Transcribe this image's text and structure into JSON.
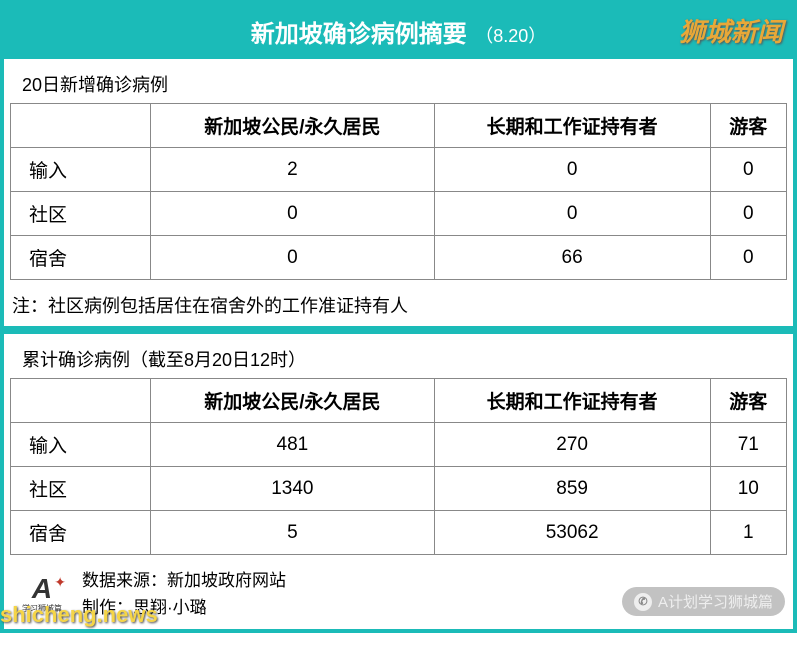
{
  "header": {
    "title": "新加坡确诊病例摘要",
    "date": "（8.20）"
  },
  "watermarks": {
    "top_right": "狮城新闻",
    "bottom_left": "shicheng.news",
    "bottom_right": "A计划学习狮城篇"
  },
  "table1": {
    "title": "20日新增确诊病例",
    "headers": [
      "",
      "新加坡公民/永久居民",
      "长期和工作证持有者",
      "游客"
    ],
    "rows": [
      {
        "label": "输入",
        "values": [
          "2",
          "0",
          "0"
        ]
      },
      {
        "label": "社区",
        "values": [
          "0",
          "0",
          "0"
        ]
      },
      {
        "label": "宿舍",
        "values": [
          "0",
          "66",
          "0"
        ]
      }
    ],
    "note": "注：社区病例包括居住在宿舍外的工作准证持有人"
  },
  "table2": {
    "title": "累计确诊病例（截至8月20日12时）",
    "headers": [
      "",
      "新加坡公民/永久居民",
      "长期和工作证持有者",
      "游客"
    ],
    "rows": [
      {
        "label": "输入",
        "values": [
          "481",
          "270",
          "71"
        ]
      },
      {
        "label": "社区",
        "values": [
          "1340",
          "859",
          "10"
        ]
      },
      {
        "label": "宿舍",
        "values": [
          "5",
          "53062",
          "1"
        ]
      }
    ]
  },
  "footer": {
    "source": "数据来源：新加坡政府网站",
    "author": "制作：思翔·小璐",
    "logo_text": "A",
    "logo_sub": "学习狮城篇"
  },
  "colors": {
    "primary": "#1bbbb8",
    "watermark_gold": "#e8a838",
    "watermark_yellow": "#f5d547"
  }
}
